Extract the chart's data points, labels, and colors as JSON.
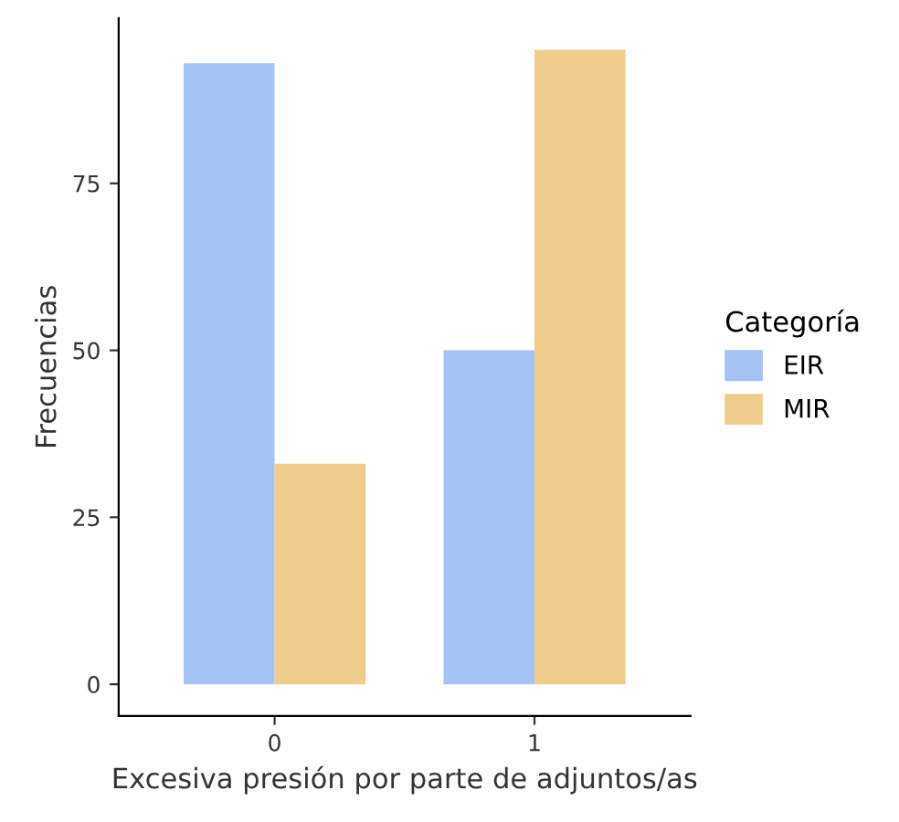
{
  "chart_data": {
    "type": "bar",
    "xlabel": "Excesiva presión por parte de adjuntos/as",
    "ylabel": "Frecuencias",
    "legend_title": "Categoría",
    "categories": [
      "0",
      "1"
    ],
    "series": [
      {
        "name": "EIR",
        "color": "#a4c2f4",
        "values": [
          93,
          50
        ]
      },
      {
        "name": "MIR",
        "color": "#f0cc8c",
        "values": [
          33,
          95
        ]
      }
    ],
    "ylim": [
      -4.75,
      99.75
    ],
    "yticks": [
      0,
      25,
      50,
      75
    ],
    "grid": false,
    "legend": "right"
  }
}
